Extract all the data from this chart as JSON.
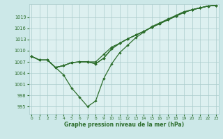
{
  "xlabel": "Graphe pression niveau de la mer (hPa)",
  "background_color": "#cce8e8",
  "plot_bg_color": "#ddf0f0",
  "grid_color": "#aacccc",
  "line_color": "#2d6e2d",
  "x_ticks": [
    0,
    1,
    2,
    3,
    4,
    5,
    6,
    7,
    8,
    9,
    10,
    11,
    12,
    13,
    14,
    15,
    16,
    17,
    18,
    19,
    20,
    21,
    22,
    23
  ],
  "y_ticks": [
    995,
    998,
    1001,
    1004,
    1007,
    1010,
    1013,
    1016,
    1019
  ],
  "ylim": [
    993.0,
    1022.5
  ],
  "xlim": [
    -0.3,
    23.3
  ],
  "line1_x": [
    0,
    1,
    2,
    3,
    4,
    5,
    6,
    7,
    8,
    9,
    10,
    11,
    12,
    13,
    14,
    15,
    16,
    17,
    18,
    19,
    20,
    21,
    22,
    23
  ],
  "line1_y": [
    1008.5,
    1007.5,
    1007.5,
    1005.5,
    1003.5,
    1000.0,
    997.5,
    995.0,
    996.5,
    1002.5,
    1006.5,
    1009.5,
    1011.5,
    1013.5,
    1015.0,
    1016.5,
    1017.5,
    1018.5,
    1019.5,
    1020.5,
    1021.0,
    1021.5,
    1022.0,
    1022.2
  ],
  "line2_x": [
    0,
    1,
    2,
    3,
    4,
    5,
    6,
    7,
    8,
    9,
    10,
    11,
    12,
    13,
    14,
    15,
    16,
    17,
    18,
    19,
    20,
    21,
    22,
    23
  ],
  "line2_y": [
    1008.5,
    1007.5,
    1007.5,
    1005.5,
    1006.0,
    1006.8,
    1007.0,
    1007.0,
    1007.0,
    1009.0,
    1011.0,
    1012.0,
    1013.2,
    1014.2,
    1015.2,
    1016.3,
    1017.3,
    1018.3,
    1019.3,
    1020.3,
    1021.0,
    1021.5,
    1022.0,
    1022.2
  ],
  "line3_x": [
    0,
    1,
    2,
    3,
    4,
    5,
    6,
    7,
    8,
    9,
    10,
    11,
    12,
    13,
    14,
    15,
    16,
    17,
    18,
    19,
    20,
    21,
    22,
    23
  ],
  "line3_y": [
    1008.5,
    1007.5,
    1007.5,
    1005.5,
    1006.0,
    1006.8,
    1007.0,
    1007.0,
    1006.5,
    1008.0,
    1010.5,
    1012.0,
    1013.2,
    1014.2,
    1015.2,
    1016.3,
    1017.3,
    1018.3,
    1019.3,
    1020.3,
    1021.0,
    1021.5,
    1022.0,
    1022.2
  ],
  "line4_x": [
    0,
    1,
    2,
    3,
    4,
    5,
    6,
    7,
    8,
    9,
    10,
    11,
    12,
    13,
    14,
    15,
    16,
    17,
    18,
    19,
    20,
    21,
    22,
    23
  ],
  "line4_y": [
    1008.5,
    1007.5,
    1007.5,
    1005.5,
    1006.0,
    1006.8,
    1007.0,
    1007.0,
    1006.5,
    1008.0,
    1010.5,
    1012.0,
    1013.2,
    1014.2,
    1015.2,
    1016.3,
    1017.3,
    1018.3,
    1019.3,
    1020.3,
    1021.0,
    1021.5,
    1022.0,
    1022.2
  ]
}
